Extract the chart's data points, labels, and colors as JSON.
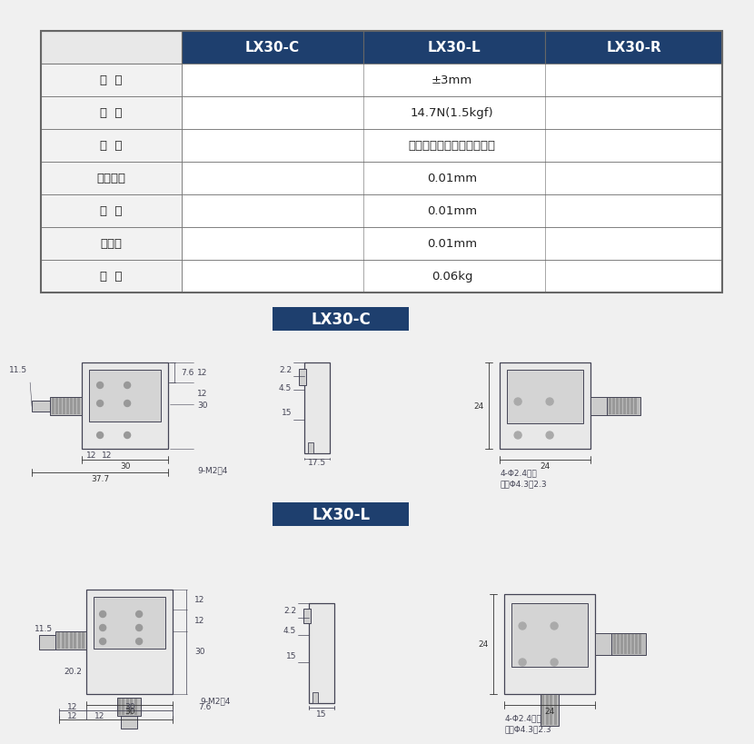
{
  "bg_color": "#f0f0f0",
  "table_header_bg": "#1e3f6e",
  "table_border_color": "#666666",
  "label_box_bg": "#1e3f6e",
  "table_headers": [
    "",
    "LX30-C",
    "LX30-L",
    "LX30-R"
  ],
  "table_rows": [
    [
      "行  程",
      "±3mm"
    ],
    [
      "负  载",
      "14.7N(1.5kgf)"
    ],
    [
      "材  料",
      "铝合金（可定制铁质材料）"
    ],
    [
      "最小刻度",
      "0.01mm"
    ],
    [
      "精  度",
      "0.01mm"
    ],
    [
      "平行度",
      "0.01mm"
    ],
    [
      "重  量",
      "0.06kg"
    ]
  ],
  "section_c_label": "LX30-C",
  "section_l_label": "LX30-L",
  "dim_c_front": {
    "w37": "37.7",
    "w30": "30",
    "w12a": "12",
    "w12b": "12",
    "h30": "30",
    "h12a": "12",
    "h12b": "12",
    "d11": "11.5",
    "d7": "7.6",
    "holes": "9-M2深4"
  },
  "dim_c_side": {
    "d22": "2.2",
    "d45": "4.5",
    "d15": "15",
    "d175": "17.5"
  },
  "dim_c_right": {
    "h24": "24",
    "w24": "24",
    "holes": "4-Φ2.4贯穿",
    "sink": "沉头Φ4.3深2.3"
  },
  "dim_l_front": {
    "w12": "12",
    "w30": "30",
    "w12b": "12",
    "h12a": "12",
    "h12b": "12",
    "h30": "30",
    "d11": "11.5",
    "d20": "20.2",
    "d7": "7.6",
    "holes": "9-M2深4",
    "bot12": "12"
  },
  "dim_l_side": {
    "d22": "2.2",
    "d45": "4.5",
    "d15": "15"
  },
  "dim_l_right": {
    "h24": "24",
    "w24": "24",
    "holes": "4-Φ2.4贯穿",
    "sink": "沉头Φ4.3深2.3"
  }
}
